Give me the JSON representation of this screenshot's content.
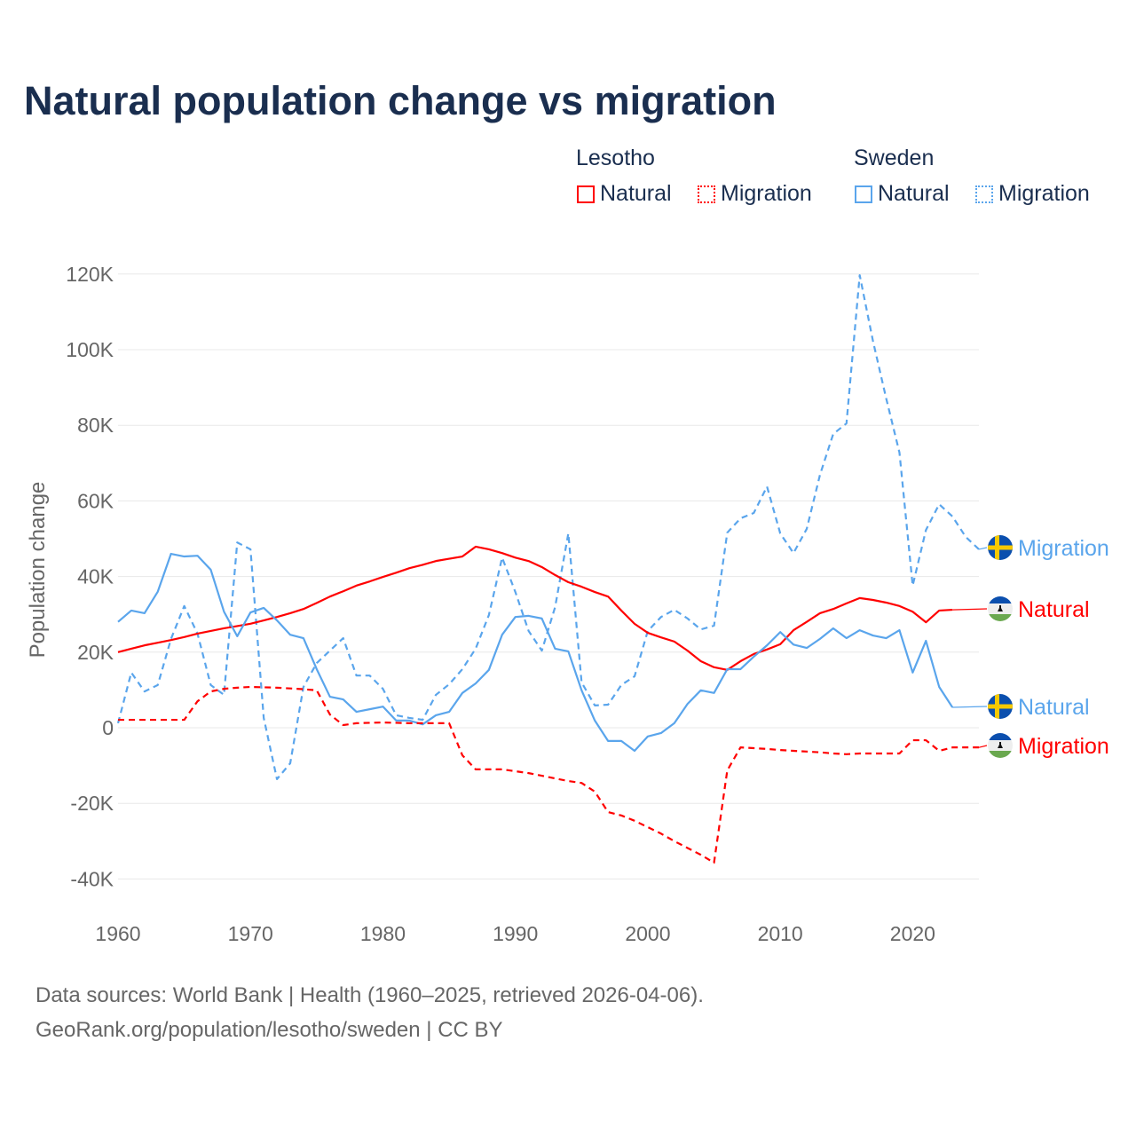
{
  "title": "Natural population change vs migration",
  "legend": {
    "groups": [
      {
        "label": "Lesotho",
        "items": [
          {
            "label": "Natural",
            "style": "solid",
            "color": "#ff0000"
          },
          {
            "label": "Migration",
            "style": "dotted",
            "color": "#ff0000"
          }
        ]
      },
      {
        "label": "Sweden",
        "items": [
          {
            "label": "Natural",
            "style": "solid",
            "color": "#5aa5ec"
          },
          {
            "label": "Migration",
            "style": "dotted",
            "color": "#5aa5ec"
          }
        ]
      }
    ]
  },
  "footer": {
    "line1": "Data sources: World Bank | Health (1960–2025, retrieved 2026-04-06).",
    "line2": "GeoRank.org/population/lesotho/sweden | CC BY"
  },
  "chart_data": {
    "type": "line",
    "title": "Natural population change vs migration",
    "xlabel": "",
    "ylabel": "Population change",
    "xlim": [
      1960,
      2025
    ],
    "ylim": [
      -40000,
      120000
    ],
    "xticks": [
      1960,
      1970,
      1980,
      1990,
      2000,
      2010,
      2020
    ],
    "xtick_labels": [
      "1960",
      "1970",
      "1980",
      "1990",
      "2000",
      "2010",
      "2020"
    ],
    "yticks": [
      -40000,
      -20000,
      0,
      20000,
      40000,
      60000,
      80000,
      100000,
      120000
    ],
    "ytick_labels": [
      "-40K",
      "-20K",
      "0",
      "20K",
      "40K",
      "60K",
      "80K",
      "100K",
      "120K"
    ],
    "grid": true,
    "legend_position": "top-right",
    "x_start": 1960,
    "series": [
      {
        "name": "Sweden Migration",
        "end_label": "Migration",
        "country": "Sweden",
        "color": "#5aa5ec",
        "dashed": true,
        "values": [
          1.2,
          14.6,
          9.6,
          11.3,
          23.5,
          32.2,
          24.9,
          11.3,
          8.7,
          49,
          47.2,
          2.6,
          -13.6,
          -9.4,
          10.8,
          17.1,
          20.4,
          23.7,
          13.8,
          13.8,
          10.3,
          3.3,
          2.6,
          2.1,
          8.7,
          11.5,
          15.5,
          20.9,
          29.8,
          45,
          35.9,
          25.6,
          20.4,
          31.9,
          51.4,
          12,
          5.9,
          6.1,
          11.3,
          13.6,
          25.6,
          29.3,
          31.2,
          28.9,
          26,
          27,
          51.6,
          55.4,
          56.8,
          63.8,
          51.4,
          46.2,
          52.6,
          66.9,
          77.7,
          80.5,
          119.7,
          102.3,
          87.1,
          72.8,
          37.6,
          52.3,
          59.1,
          55.9,
          50.5,
          47.2
        ]
      },
      {
        "name": "Lesotho Natural",
        "end_label": "Natural",
        "country": "Lesotho",
        "color": "#ff0000",
        "dashed": false,
        "values": [
          20,
          20.9,
          21.8,
          22.5,
          23.2,
          24,
          24.9,
          25.6,
          26.3,
          26.9,
          27.5,
          28.4,
          29.3,
          30.3,
          31.4,
          33,
          34.7,
          36.1,
          37.6,
          38.7,
          39.9,
          41,
          42.2,
          43.1,
          44.1,
          44.7,
          45.3,
          47.9,
          47.2,
          46.2,
          45,
          44.1,
          42.5,
          40.4,
          38.5,
          37.3,
          35.9,
          34.7,
          31,
          27.5,
          25.1,
          23.9,
          22.8,
          20.4,
          17.6,
          16,
          15.3,
          17.6,
          19.5,
          20.7,
          22.1,
          25.8,
          28,
          30.3,
          31.4,
          32.9,
          34.3,
          33.8,
          33.1,
          32.2,
          30.7,
          27.9,
          31,
          31.2,
          null,
          null
        ]
      },
      {
        "name": "Sweden Natural",
        "end_label": "Natural",
        "country": "Sweden",
        "color": "#5aa5ec",
        "dashed": false,
        "values": [
          28,
          31,
          30.3,
          36,
          46,
          45.3,
          45.5,
          41.8,
          30.7,
          24.2,
          30.5,
          31.7,
          28.4,
          24.6,
          23.7,
          15.5,
          8.2,
          7.5,
          4.2,
          4.9,
          5.6,
          1.9,
          1.9,
          0.9,
          3.3,
          4.2,
          9.2,
          11.7,
          15.3,
          24.6,
          29.3,
          29.6,
          28.9,
          20.9,
          20.2,
          9.9,
          1.9,
          -3.5,
          -3.5,
          -6.1,
          -2.3,
          -1.4,
          1.2,
          6.3,
          9.9,
          9.2,
          15.5,
          15.5,
          18.8,
          21.8,
          25.3,
          22,
          21.1,
          23.5,
          26.3,
          23.7,
          25.8,
          24.4,
          23.7,
          25.8,
          14.6,
          23,
          10.8,
          5.4,
          null,
          null
        ]
      },
      {
        "name": "Lesotho Migration",
        "end_label": "Migration",
        "country": "Lesotho",
        "color": "#ff0000",
        "dashed": true,
        "values": [
          2.1,
          2.1,
          2.1,
          2.1,
          2.1,
          2.1,
          7,
          9.6,
          10.3,
          10.6,
          10.8,
          10.7,
          10.6,
          10.4,
          10.2,
          9.9,
          3.5,
          0.7,
          1.2,
          1.3,
          1.4,
          1.3,
          1.2,
          1.2,
          1.2,
          1.2,
          -7.3,
          -11,
          -11,
          -11,
          -11.5,
          -12,
          -12.7,
          -13.4,
          -14.1,
          -14.6,
          -16.9,
          -22.3,
          -23.2,
          -24.6,
          -26.3,
          -28,
          -30,
          -31.8,
          -33.6,
          -35.7,
          -11.3,
          -5.2,
          -5.4,
          -5.6,
          -5.9,
          -6.1,
          -6.3,
          -6.5,
          -6.8,
          -7,
          -6.8,
          -6.8,
          -6.8,
          -6.8,
          -3.3,
          -3.3,
          -6.1,
          -5.2,
          -5.2,
          -5.2
        ]
      }
    ],
    "value_unit": "thousands"
  },
  "colors": {
    "lesotho": "#ff0000",
    "sweden": "#5aa5ec",
    "grid": "#e8e8e8",
    "axis_text": "#666666",
    "title": "#1a2e4f"
  }
}
